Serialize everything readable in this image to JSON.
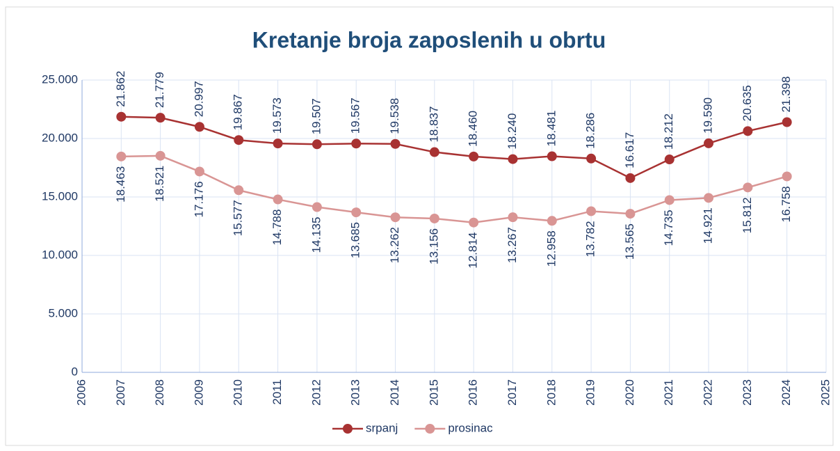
{
  "chart_data": {
    "type": "line",
    "title": "Kretanje broja zaposlenih u obrtu",
    "x": [
      2007,
      2008,
      2009,
      2010,
      2011,
      2012,
      2013,
      2014,
      2015,
      2016,
      2017,
      2018,
      2019,
      2020,
      2021,
      2022,
      2023,
      2024
    ],
    "series": [
      {
        "name": "srpanj",
        "color": "#a83232",
        "values": [
          21862,
          21779,
          20997,
          19867,
          19573,
          19507,
          19567,
          19538,
          18837,
          18460,
          18240,
          18481,
          18286,
          16617,
          18212,
          19590,
          20635,
          21398
        ],
        "value_labels": [
          "21.862",
          "21.779",
          "20.997",
          "19.867",
          "19.573",
          "19.507",
          "19.567",
          "19.538",
          "18.837",
          "18.460",
          "18.240",
          "18.481",
          "18.286",
          "16.617",
          "18.212",
          "19.590",
          "20.635",
          "21.398"
        ]
      },
      {
        "name": "prosinac",
        "color": "#d99594",
        "values": [
          18463,
          18521,
          17176,
          15577,
          14788,
          14135,
          13685,
          13262,
          13156,
          12814,
          13267,
          12958,
          13782,
          13565,
          14735,
          14921,
          15812,
          16758
        ],
        "value_labels": [
          "18.463",
          "18.521",
          "17.176",
          "15.577",
          "14.788",
          "14.135",
          "13.685",
          "13.262",
          "13.156",
          "12.814",
          "13.267",
          "12.958",
          "13.782",
          "13.565",
          "14.735",
          "14.921",
          "15.812",
          "16.758"
        ]
      }
    ],
    "xlim": [
      2006,
      2025
    ],
    "xticks": [
      2006,
      2007,
      2008,
      2009,
      2010,
      2011,
      2012,
      2013,
      2014,
      2015,
      2016,
      2017,
      2018,
      2019,
      2020,
      2021,
      2022,
      2023,
      2024,
      2025
    ],
    "ylim": [
      0,
      25000
    ],
    "yticks": [
      0,
      {
        "value": 5000,
        "label": "5.000"
      },
      {
        "value": 10000,
        "label": "10.000"
      },
      {
        "value": 15000,
        "label": "15.000"
      },
      {
        "value": 20000,
        "label": "20.000"
      },
      {
        "value": 25000,
        "label": "25.000"
      }
    ],
    "grid": true,
    "legend": "bottom"
  }
}
